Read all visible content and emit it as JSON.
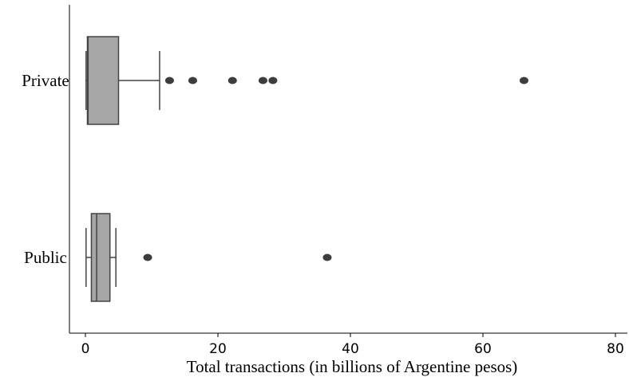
{
  "chart_data": {
    "type": "box",
    "orientation": "horizontal",
    "xlabel": "Total transactions (in billions of Argentine pesos)",
    "xlim": [
      0,
      80
    ],
    "xticks": [
      0,
      20,
      40,
      60,
      80
    ],
    "grid": false,
    "box_color": "#a6a6a6",
    "line_color": "#444444",
    "categories": [
      "Private",
      "Public"
    ],
    "boxes": [
      {
        "category": "Private",
        "min": 0.1,
        "q1": 0.3,
        "median": 0.4,
        "q3": 5.0,
        "max": 11.2,
        "outliers": [
          12.7,
          16.2,
          22.2,
          26.8,
          28.3,
          66.2
        ]
      },
      {
        "category": "Public",
        "min": 0.1,
        "q1": 0.9,
        "median": 1.7,
        "q3": 3.7,
        "max": 4.6,
        "outliers": [
          9.4,
          36.5
        ]
      }
    ]
  }
}
